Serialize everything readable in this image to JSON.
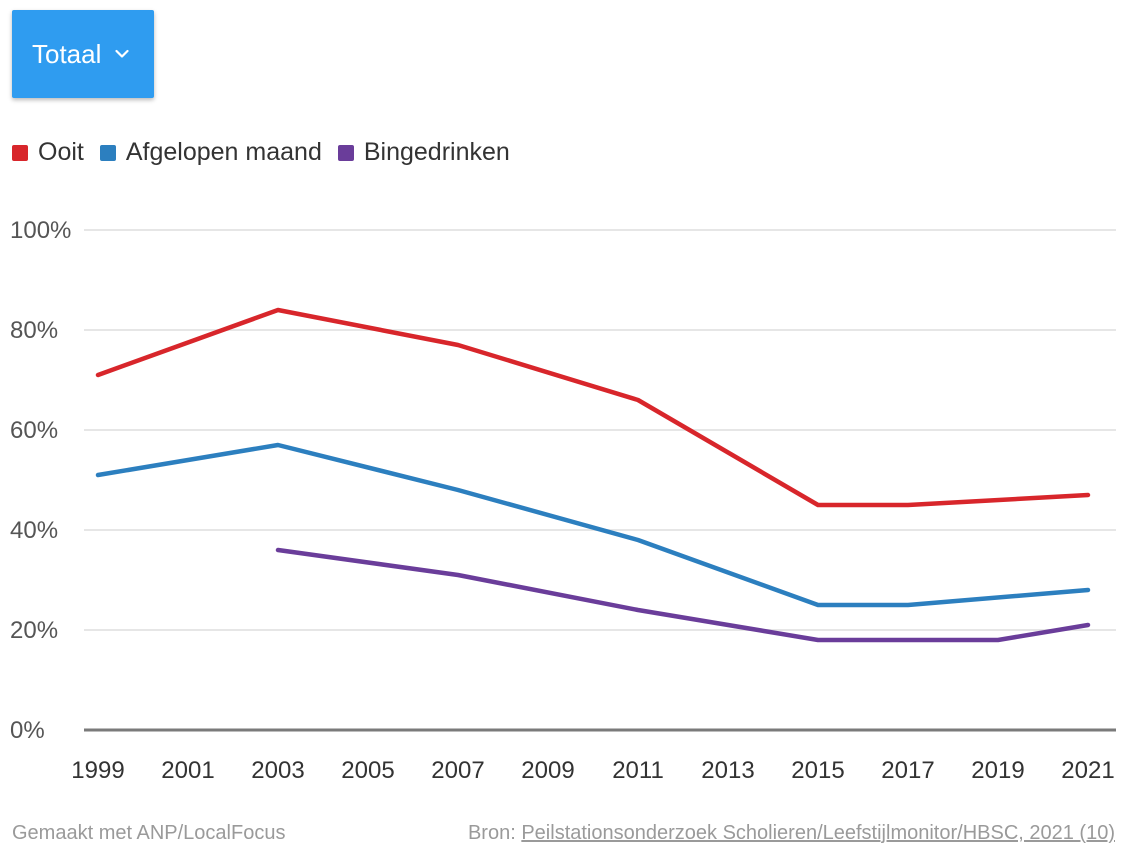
{
  "dropdown": {
    "label": "Totaal",
    "icon": "chevron-down-icon"
  },
  "colors": {
    "ooit": "#d8262b",
    "afgelopen_maand": "#2c7fbf",
    "bingedrinken": "#6a3d9a",
    "dropdown_bg": "#2f9cf0"
  },
  "chart_data": {
    "type": "line",
    "x": [
      "1999",
      "2001",
      "2003",
      "2005",
      "2007",
      "2009",
      "2011",
      "2013",
      "2015",
      "2017",
      "2019",
      "2021"
    ],
    "series": [
      {
        "name": "Ooit",
        "points": [
          [
            1999,
            71
          ],
          [
            2003,
            84
          ],
          [
            2007,
            77
          ],
          [
            2011,
            66
          ],
          [
            2015,
            45
          ],
          [
            2017,
            45
          ],
          [
            2021,
            47
          ]
        ]
      },
      {
        "name": "Afgelopen maand",
        "points": [
          [
            1999,
            51
          ],
          [
            2003,
            57
          ],
          [
            2007,
            48
          ],
          [
            2011,
            38
          ],
          [
            2015,
            25
          ],
          [
            2017,
            25
          ],
          [
            2021,
            28
          ]
        ]
      },
      {
        "name": "Bingedrinken",
        "points": [
          [
            2003,
            36
          ],
          [
            2007,
            31
          ],
          [
            2011,
            24
          ],
          [
            2015,
            18
          ],
          [
            2017,
            18
          ],
          [
            2019,
            18
          ],
          [
            2021,
            21
          ]
        ]
      }
    ],
    "y_ticks": [
      "100%",
      "80%",
      "60%",
      "40%",
      "20%",
      "0%"
    ],
    "ylim": [
      0,
      100
    ],
    "xlim": [
      1999,
      2021
    ],
    "grid": true,
    "legend_position": "top-left"
  },
  "footer": {
    "made_with": "Gemaakt met ANP/LocalFocus",
    "source_prefix": "Bron:",
    "source_link": "Peilstationsonderzoek Scholieren/Leefstijlmonitor/HBSC, 2021 (10)"
  }
}
